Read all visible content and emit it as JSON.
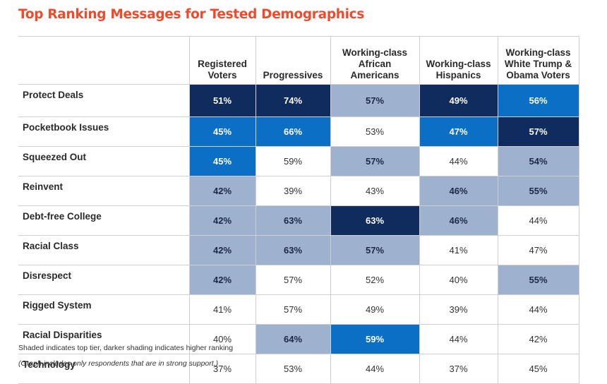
{
  "title": "Top Ranking Messages for Tested Demographics",
  "chart_data": {
    "type": "table",
    "title": "Top Ranking Messages for Tested Demographics",
    "columns": [
      [
        "Registered",
        "Voters"
      ],
      [
        "Progressives"
      ],
      [
        "Working-class",
        "African",
        "Americans"
      ],
      [
        "Working-class",
        "Hispanics"
      ],
      [
        "Working-class",
        "White Trump &",
        "Obama Voters"
      ]
    ],
    "tier_colors": {
      "1": "#102b5e",
      "2": "#0b6fc6",
      "3": "#9eb1cf",
      "0": "#ffffff"
    },
    "rows": [
      {
        "label": "Protect Deals",
        "values": [
          "51%",
          "74%",
          "57%",
          "49%",
          "56%"
        ],
        "tiers": [
          1,
          1,
          3,
          1,
          2
        ]
      },
      {
        "label": "Pocketbook Issues",
        "values": [
          "45%",
          "66%",
          "53%",
          "47%",
          "57%"
        ],
        "tiers": [
          2,
          2,
          0,
          2,
          1
        ]
      },
      {
        "label": "Squeezed Out",
        "values": [
          "45%",
          "59%",
          "57%",
          "44%",
          "54%"
        ],
        "tiers": [
          2,
          0,
          3,
          0,
          3
        ]
      },
      {
        "label": "Reinvent",
        "values": [
          "42%",
          "39%",
          "43%",
          "46%",
          "55%"
        ],
        "tiers": [
          3,
          0,
          0,
          3,
          3
        ]
      },
      {
        "label": "Debt-free College",
        "values": [
          "42%",
          "63%",
          "63%",
          "46%",
          "44%"
        ],
        "tiers": [
          3,
          3,
          1,
          3,
          0
        ]
      },
      {
        "label": "Racial Class",
        "values": [
          "42%",
          "63%",
          "57%",
          "41%",
          "47%"
        ],
        "tiers": [
          3,
          3,
          3,
          0,
          0
        ]
      },
      {
        "label": "Disrespect",
        "values": [
          "42%",
          "57%",
          "52%",
          "40%",
          "55%"
        ],
        "tiers": [
          3,
          0,
          0,
          0,
          3
        ]
      },
      {
        "label": "Rigged System",
        "values": [
          "41%",
          "57%",
          "49%",
          "39%",
          "44%"
        ],
        "tiers": [
          0,
          0,
          0,
          0,
          0
        ]
      },
      {
        "label": "Racial Disparities",
        "values": [
          "40%",
          "64%",
          "59%",
          "44%",
          "42%"
        ],
        "tiers": [
          0,
          3,
          2,
          0,
          0
        ]
      },
      {
        "label": "Technology",
        "values": [
          "37%",
          "53%",
          "44%",
          "37%",
          "45%"
        ],
        "tiers": [
          0,
          0,
          0,
          0,
          0
        ]
      }
    ]
  },
  "notes": {
    "shading": "Shaded indicates top tier, darker shading indicates higher ranking",
    "respondents": "(Graph includes only respondents that are in strong support.)"
  }
}
